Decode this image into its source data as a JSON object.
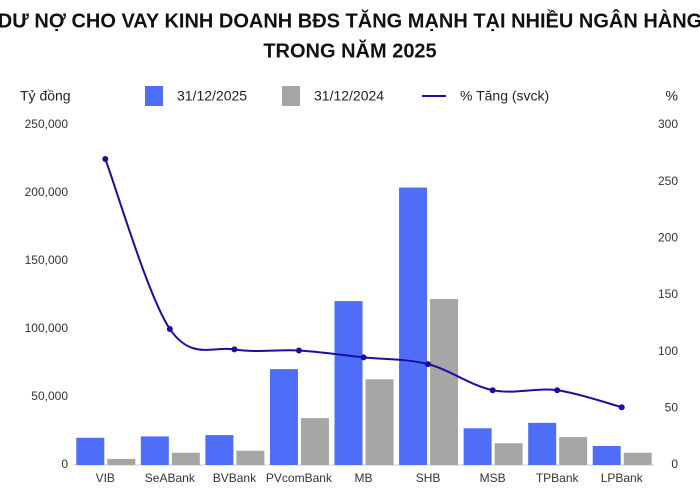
{
  "chart_data": {
    "type": "bar",
    "title": [
      "DƯ NỢ CHO VAY KINH DOANH BĐS TĂNG MẠNH TẠI NHIỀU NGÂN HÀNG",
      "TRONG NĂM 2025"
    ],
    "ylabel": "Tỷ đồng",
    "y2label": "%",
    "categories": [
      "VIB",
      "SeABank",
      "BVBank",
      "PVcomBank",
      "MB",
      "SHB",
      "MSB",
      "TPBank",
      "LPBank"
    ],
    "series": [
      {
        "name": "31/12/2025",
        "type": "bar",
        "color": "#4f6ef7",
        "values": [
          20000,
          21000,
          22000,
          70500,
          120500,
          204000,
          27000,
          31000,
          14000
        ]
      },
      {
        "name": "31/12/2024",
        "type": "bar",
        "color": "#a6a6a6",
        "values": [
          4500,
          9000,
          10500,
          34500,
          63000,
          122000,
          16000,
          20500,
          9000
        ]
      },
      {
        "name": "% Tăng (svck)",
        "type": "line",
        "axis": "y2",
        "color": "#1a0f9e",
        "values": [
          270,
          120,
          102,
          101,
          95,
          89,
          66,
          66,
          51
        ]
      }
    ],
    "ylim": [
      0,
      250000
    ],
    "yticks": [
      0,
      {
        "value": 50000,
        "label": "50,000"
      },
      {
        "value": 100000,
        "label": "100,000"
      },
      {
        "value": 150000,
        "label": "150,000"
      },
      {
        "value": 200000,
        "label": "200,000"
      },
      {
        "value": 250000,
        "label": "250,000"
      }
    ],
    "y2lim": [
      0,
      300
    ],
    "y2ticks": [
      0,
      50,
      100,
      150,
      200,
      250,
      300
    ],
    "grid": false
  }
}
